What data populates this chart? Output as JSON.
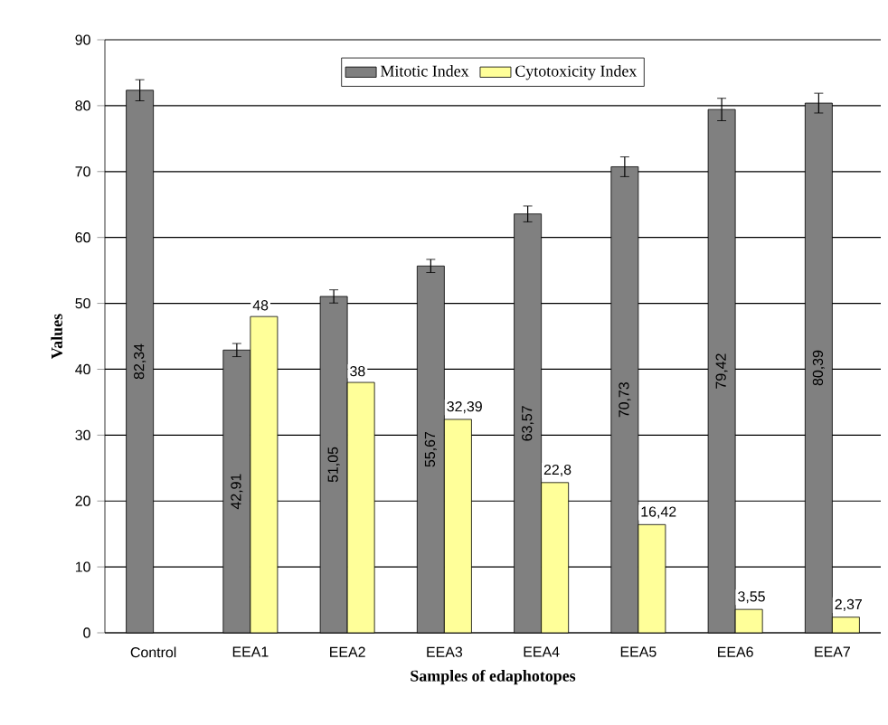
{
  "chart_data": {
    "type": "bar",
    "xlabel": "Samples of edaphotopes",
    "ylabel": "Values",
    "categories": [
      "Control",
      "EEA1",
      "EEA2",
      "EEA3",
      "EEA4",
      "EEA5",
      "EEA6",
      "EEA7"
    ],
    "series": [
      {
        "name": "Mitotic Index",
        "color": "#808080",
        "values": [
          82.34,
          42.91,
          51.05,
          55.67,
          63.57,
          70.73,
          79.42,
          80.39
        ],
        "errors": [
          1.6,
          1.0,
          1.0,
          1.0,
          1.2,
          1.5,
          1.7,
          1.5
        ],
        "value_labels": [
          "82,34",
          "42,91",
          "51,05",
          "55,67",
          "63,57",
          "70,73",
          "79,42",
          "80,39"
        ]
      },
      {
        "name": "Cytotoxicity Index",
        "color": "#ffff99",
        "values": [
          null,
          48,
          38,
          32.39,
          22.8,
          16.42,
          3.55,
          2.37
        ],
        "value_labels": [
          null,
          "48",
          "38",
          "32,39",
          "22,8",
          "16,42",
          "3,55",
          "2,37"
        ]
      }
    ],
    "ylim": [
      0,
      90
    ],
    "yticks": [
      0,
      10,
      20,
      30,
      40,
      50,
      60,
      70,
      80,
      90
    ],
    "grid": "y",
    "legend": "top"
  }
}
